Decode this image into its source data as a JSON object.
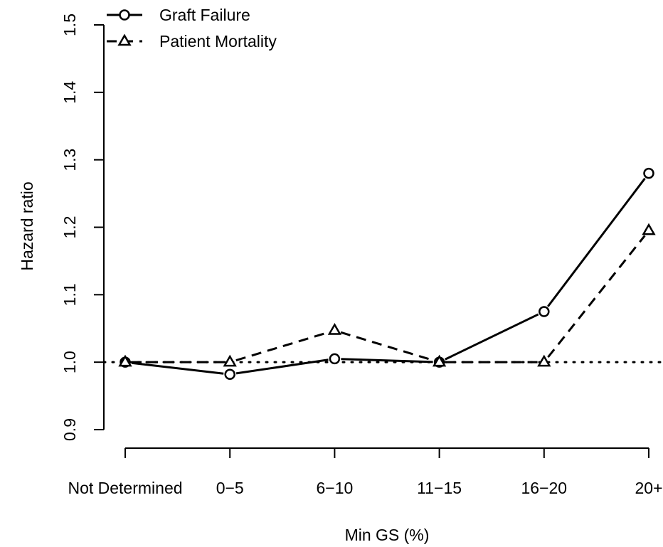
{
  "chart_data": {
    "type": "line",
    "title": "",
    "xlabel": "Min GS (%)",
    "ylabel": "Hazard ratio",
    "categories": [
      "Not Determined",
      "0−5",
      "6−10",
      "11−15",
      "16−20",
      "20+"
    ],
    "ylim": [
      0.88,
      1.5
    ],
    "yticks": [
      "0.9",
      "1.0",
      "1.1",
      "1.2",
      "1.3",
      "1.4",
      "1.5"
    ],
    "reference_line": {
      "y": 1.0,
      "style": "dotted"
    },
    "legend_position": "top-left",
    "grid": false,
    "series": [
      {
        "name": "Graft Failure",
        "values": [
          1.0,
          0.982,
          1.005,
          1.0,
          1.075,
          1.28
        ],
        "marker": "circle",
        "line_style": "solid",
        "color": "#000000"
      },
      {
        "name": "Patient Mortality",
        "values": [
          1.0,
          1.0,
          1.047,
          1.0,
          1.0,
          1.195
        ],
        "marker": "triangle",
        "line_style": "dashed",
        "color": "#000000"
      }
    ]
  }
}
